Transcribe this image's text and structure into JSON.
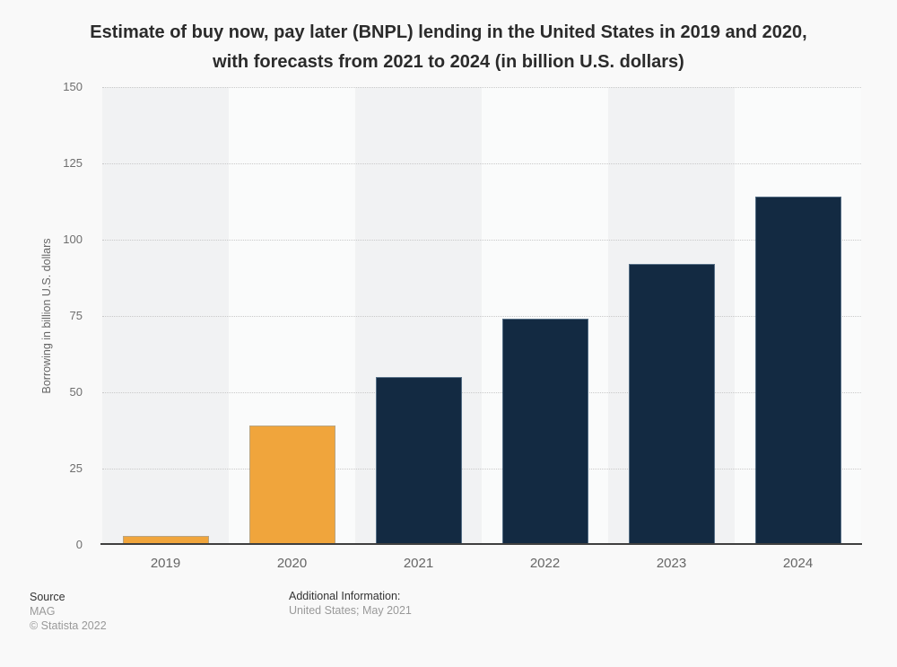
{
  "chart_data": {
    "type": "bar",
    "title": "Estimate of buy now, pay later (BNPL) lending in the United States in 2019 and 2020, with forecasts from 2021 to 2024 (in billion U.S. dollars)",
    "categories": [
      "2019",
      "2020",
      "2021",
      "2022",
      "2023",
      "2024"
    ],
    "values": [
      3,
      39,
      55,
      74,
      92,
      114
    ],
    "bar_colors": [
      "#f0a53c",
      "#f0a53c",
      "#132a42",
      "#132a42",
      "#132a42",
      "#132a42"
    ],
    "xlabel": "",
    "ylabel": "Borrowing in billion U.S. dollars",
    "ylim": [
      0,
      150
    ],
    "yticks": [
      0,
      25,
      50,
      75,
      100,
      125,
      150
    ],
    "grid": "horizontal dotted",
    "legend": "none",
    "plot_band_colors": {
      "dark": "#f1f2f3",
      "light": "#fafbfb"
    },
    "accent_orange": "#f0a53c",
    "accent_navy": "#132a42"
  },
  "footer": {
    "source_label": "Source",
    "source_value": "MAG",
    "copyright": "© Statista 2022",
    "additional_label": "Additional Information:",
    "additional_value": "United States; May 2021"
  }
}
